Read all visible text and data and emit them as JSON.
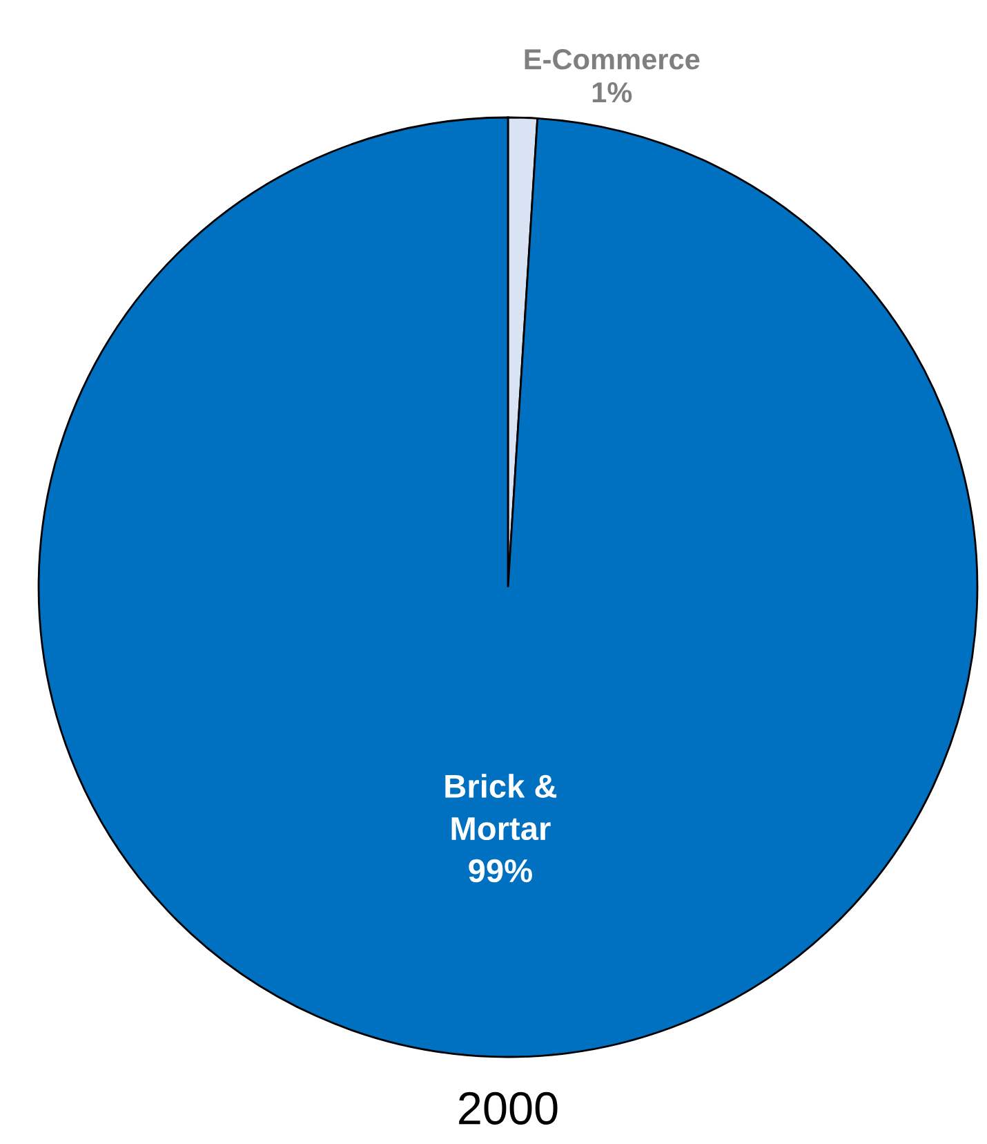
{
  "chart_data": {
    "type": "pie",
    "title": "2000",
    "categories": [
      "E-Commerce",
      "Brick & Mortar"
    ],
    "values": [
      1,
      99
    ],
    "colors": [
      "#dae3f3",
      "#0070c0"
    ],
    "value_labels": [
      "1%",
      "99%"
    ]
  }
}
